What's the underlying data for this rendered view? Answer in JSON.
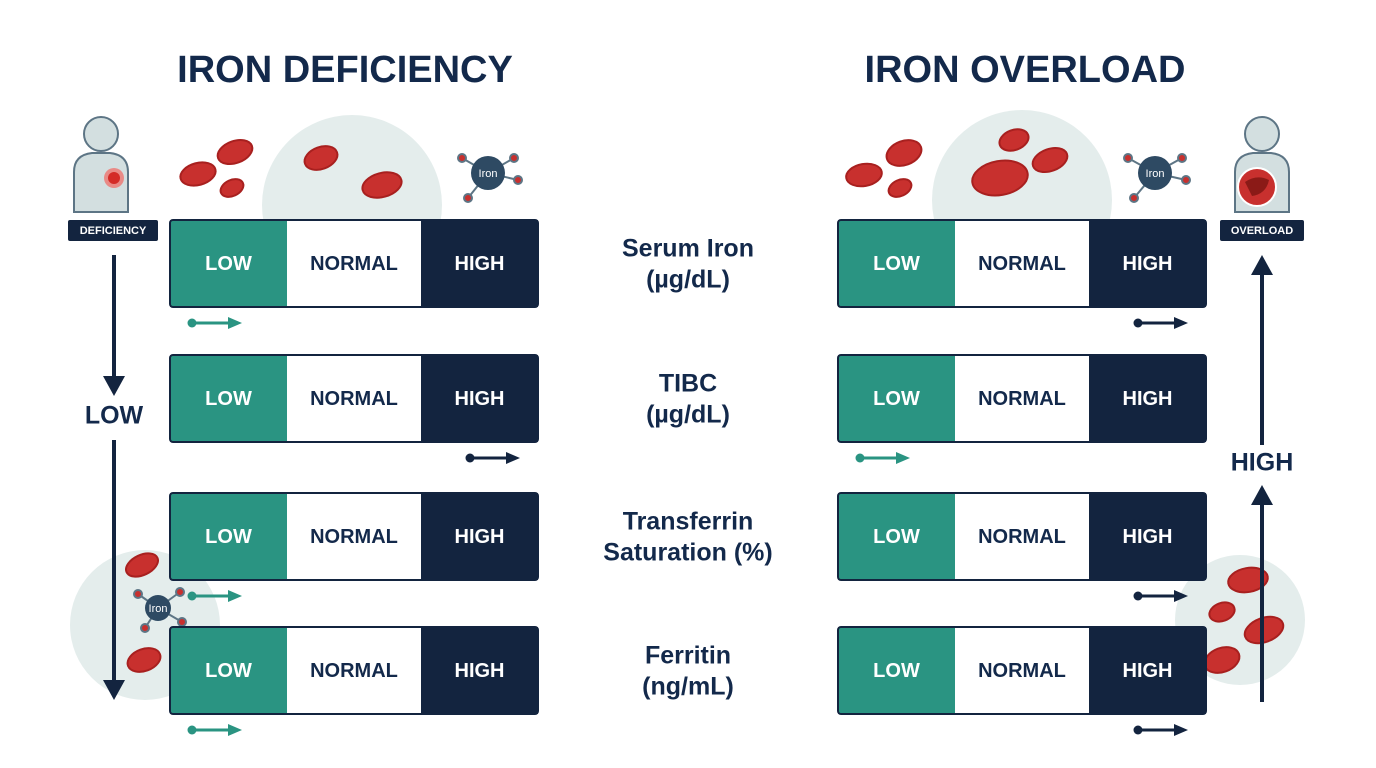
{
  "panels": [
    {
      "title": "IRON DEFICIENCY",
      "badge": "DEFICIENCY",
      "direction_label": "LOW",
      "molecule_label": "Iron",
      "results": [
        "LOW",
        "HIGH",
        "LOW",
        "LOW"
      ]
    },
    {
      "title": "IRON OVERLOAD",
      "badge": "OVERLOAD",
      "direction_label": "HIGH",
      "molecule_label": "Iron",
      "results": [
        "HIGH",
        "LOW",
        "HIGH",
        "HIGH"
      ]
    }
  ],
  "scale_labels": [
    "LOW",
    "NORMAL",
    "HIGH"
  ],
  "tests": [
    {
      "lines": [
        "Serum Iron",
        "(µg/dL)"
      ]
    },
    {
      "lines": [
        "TIBC",
        "(µg/dL)"
      ]
    },
    {
      "lines": [
        "Transferrin",
        "Saturation (%)"
      ]
    },
    {
      "lines": [
        "Ferritin",
        "(ng/mL)"
      ]
    }
  ]
}
